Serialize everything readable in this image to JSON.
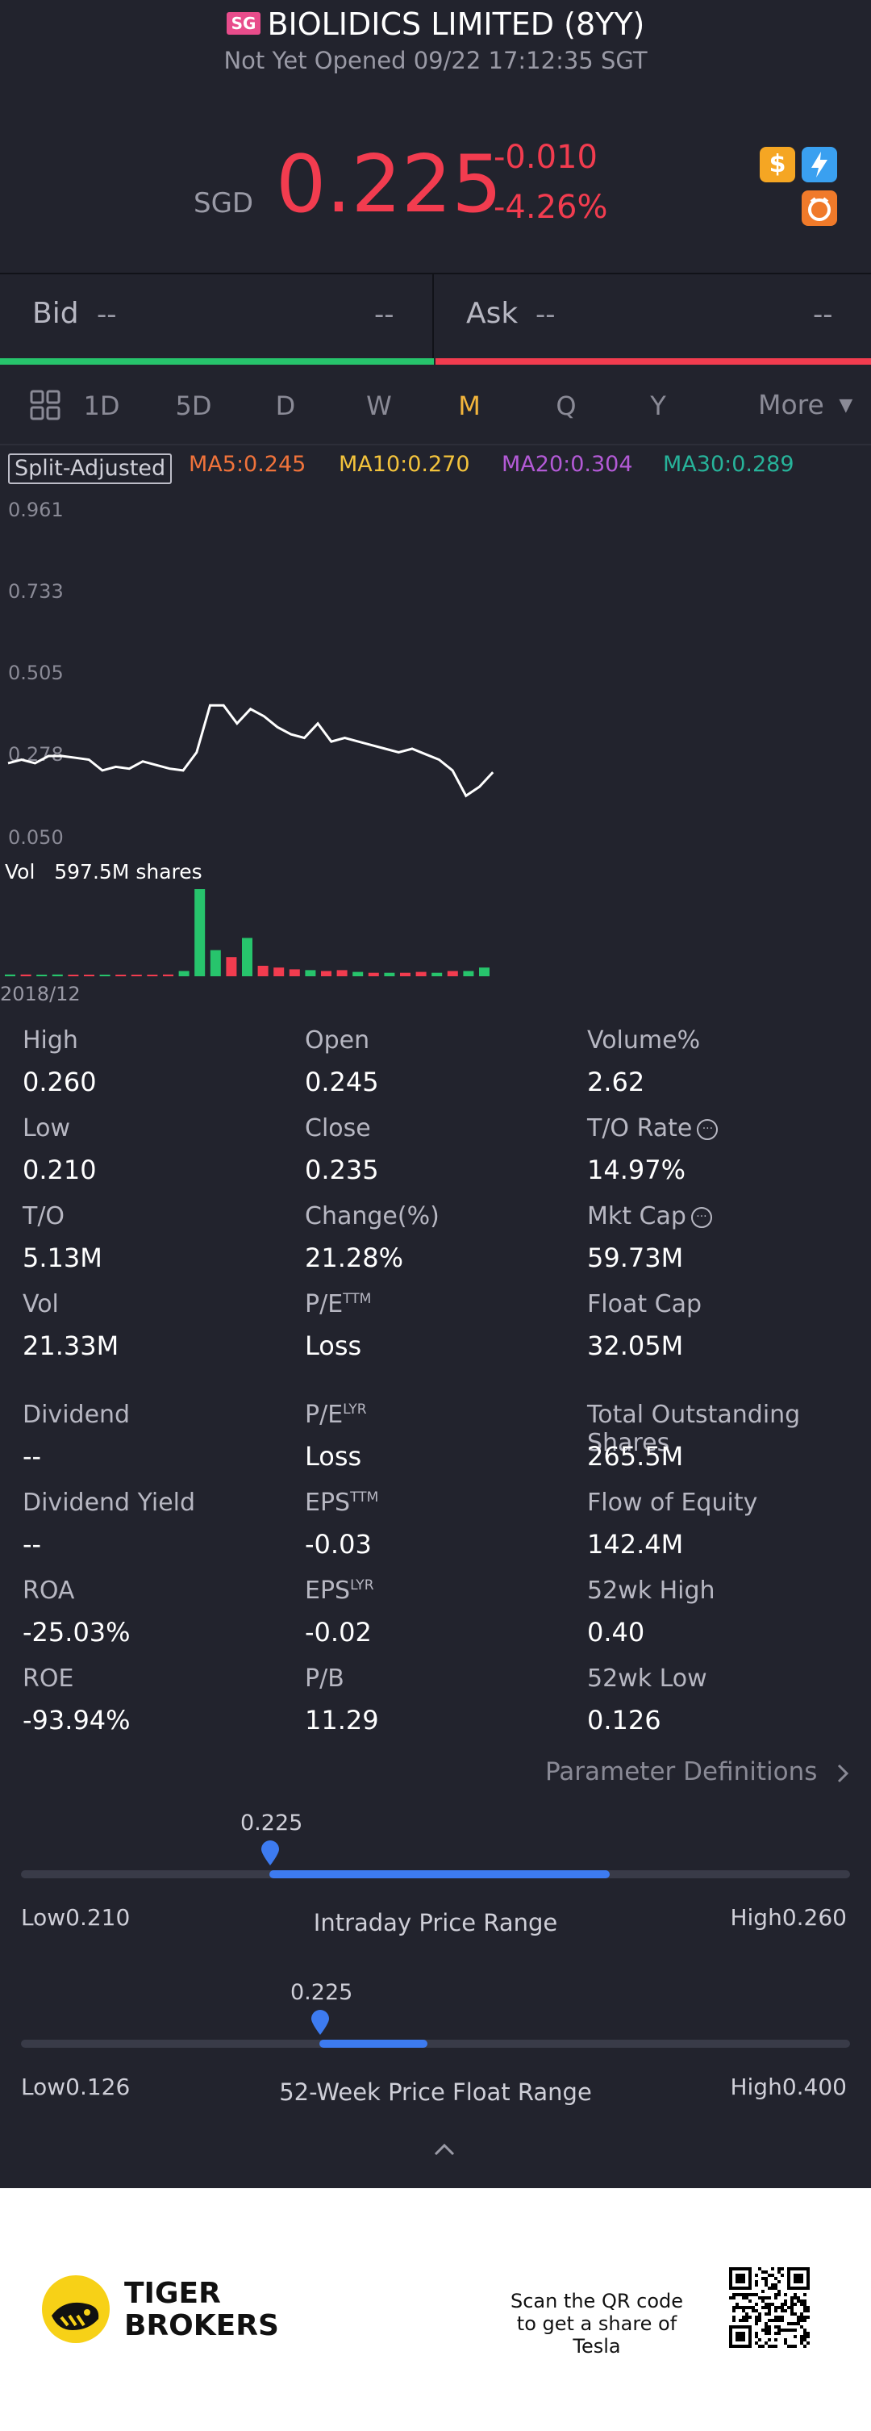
{
  "header": {
    "market_flag": "SG",
    "title": "BIOLIDICS LIMITED (8YY)",
    "status": "Not Yet Opened 09/22 17:12:35 SGT"
  },
  "quote": {
    "currency": "SGD",
    "price": "0.225",
    "change": "-0.010",
    "change_pct": "-4.26%",
    "icons": [
      "dollar-icon",
      "flash-icon",
      "tiger-icon"
    ]
  },
  "order_book": {
    "bid_label": "Bid",
    "bid_price": "--",
    "bid_size": "--",
    "ask_label": "Ask",
    "ask_price": "--",
    "ask_size": "--"
  },
  "tabs": {
    "items": [
      "1D",
      "5D",
      "D",
      "W",
      "M",
      "Q",
      "Y"
    ],
    "active": "M",
    "more_label": "More"
  },
  "chart_data": {
    "type": "line",
    "adjustment_label": "Split-Adjusted",
    "ma": [
      {
        "label": "MA5:0.245",
        "color": "#f0733b"
      },
      {
        "label": "MA10:0.270",
        "color": "#f3c33c"
      },
      {
        "label": "MA20:0.304",
        "color": "#b35ad6"
      },
      {
        "label": "MA30:0.289",
        "color": "#27b39a"
      }
    ],
    "y_ticks": [
      "0.961",
      "0.733",
      "0.505",
      "0.278",
      "0.050"
    ],
    "ylim": [
      0.05,
      0.961
    ],
    "price_series": [
      0.26,
      0.27,
      0.26,
      0.28,
      0.28,
      0.275,
      0.27,
      0.24,
      0.25,
      0.245,
      0.265,
      0.255,
      0.245,
      0.24,
      0.29,
      0.42,
      0.42,
      0.37,
      0.41,
      0.39,
      0.36,
      0.34,
      0.33,
      0.37,
      0.32,
      0.33,
      0.32,
      0.31,
      0.3,
      0.29,
      0.3,
      0.285,
      0.27,
      0.24,
      0.17,
      0.195,
      0.235
    ],
    "volume_label": "Vol",
    "volume_value": "597.5M shares",
    "volume_series": [
      {
        "v": 0.02,
        "up": true
      },
      {
        "v": 0.02,
        "up": false
      },
      {
        "v": 0.015,
        "up": true
      },
      {
        "v": 0.02,
        "up": true
      },
      {
        "v": 0.01,
        "up": false
      },
      {
        "v": 0.01,
        "up": false
      },
      {
        "v": 0.01,
        "up": true
      },
      {
        "v": 0.01,
        "up": false
      },
      {
        "v": 0.01,
        "up": false
      },
      {
        "v": 0.015,
        "up": false
      },
      {
        "v": 0.02,
        "up": false
      },
      {
        "v": 0.06,
        "up": true
      },
      {
        "v": 1.0,
        "up": true
      },
      {
        "v": 0.3,
        "up": true
      },
      {
        "v": 0.22,
        "up": false
      },
      {
        "v": 0.44,
        "up": true
      },
      {
        "v": 0.12,
        "up": false
      },
      {
        "v": 0.1,
        "up": false
      },
      {
        "v": 0.08,
        "up": false
      },
      {
        "v": 0.07,
        "up": true
      },
      {
        "v": 0.06,
        "up": false
      },
      {
        "v": 0.07,
        "up": false
      },
      {
        "v": 0.05,
        "up": true
      },
      {
        "v": 0.04,
        "up": false
      },
      {
        "v": 0.04,
        "up": true
      },
      {
        "v": 0.04,
        "up": false
      },
      {
        "v": 0.05,
        "up": false
      },
      {
        "v": 0.04,
        "up": true
      },
      {
        "v": 0.06,
        "up": false
      },
      {
        "v": 0.06,
        "up": true
      },
      {
        "v": 0.1,
        "up": true
      }
    ],
    "x_label": "2018/12"
  },
  "stats": {
    "col1": [
      {
        "k": "High",
        "v": "0.260"
      },
      {
        "k": "Low",
        "v": "0.210"
      },
      {
        "k": "T/O",
        "v": "5.13M"
      },
      {
        "k": "Vol",
        "v": "21.33M"
      },
      {
        "k": "Dividend",
        "v": "--"
      },
      {
        "k": "Dividend Yield",
        "v": "--"
      },
      {
        "k": "ROA",
        "v": "-25.03%"
      },
      {
        "k": "ROE",
        "v": "-93.94%"
      }
    ],
    "col2": [
      {
        "k": "Open",
        "v": "0.245"
      },
      {
        "k": "Close",
        "v": "0.235"
      },
      {
        "k": "Change(%)",
        "v": "21.28%"
      },
      {
        "k": "P/E",
        "sup": "TTM",
        "v": "Loss"
      },
      {
        "k": "P/E",
        "sup": "LYR",
        "v": "Loss"
      },
      {
        "k": "EPS",
        "sup": "TTM",
        "v": "-0.03"
      },
      {
        "k": "EPS",
        "sup": "LYR",
        "v": "-0.02"
      },
      {
        "k": "P/B",
        "v": "11.29"
      }
    ],
    "col3": [
      {
        "k": "Volume%",
        "v": "2.62"
      },
      {
        "k": "T/O Rate",
        "info": true,
        "v": "14.97%"
      },
      {
        "k": "Mkt Cap",
        "info": true,
        "v": "59.73M"
      },
      {
        "k": "Float Cap",
        "v": "32.05M"
      },
      {
        "k": "Total Outstanding Shares",
        "v": "265.5M"
      },
      {
        "k": "Flow of Equity",
        "v": "142.4M"
      },
      {
        "k": "52wk High",
        "v": "0.40"
      },
      {
        "k": "52wk Low",
        "v": "0.126"
      }
    ],
    "definitions_link": "Parameter Definitions"
  },
  "ranges": {
    "intraday": {
      "title": "Intraday Price Range",
      "current": "0.225",
      "low_label": "Low",
      "low": "0.210",
      "high_label": "High",
      "high": "0.260",
      "marker_fraction": 0.3,
      "fill_end_fraction": 0.71
    },
    "week52": {
      "title": "52-Week Price Float Range",
      "current": "0.225",
      "low_label": "Low",
      "low": "0.126",
      "high_label": "High",
      "high": "0.400",
      "marker_fraction": 0.36,
      "fill_end_fraction": 0.49
    }
  },
  "footer": {
    "brand_line1": "TIGER",
    "brand_line2": "BROKERS",
    "scan_text": "Scan the QR code to get a share of Tesla"
  }
}
